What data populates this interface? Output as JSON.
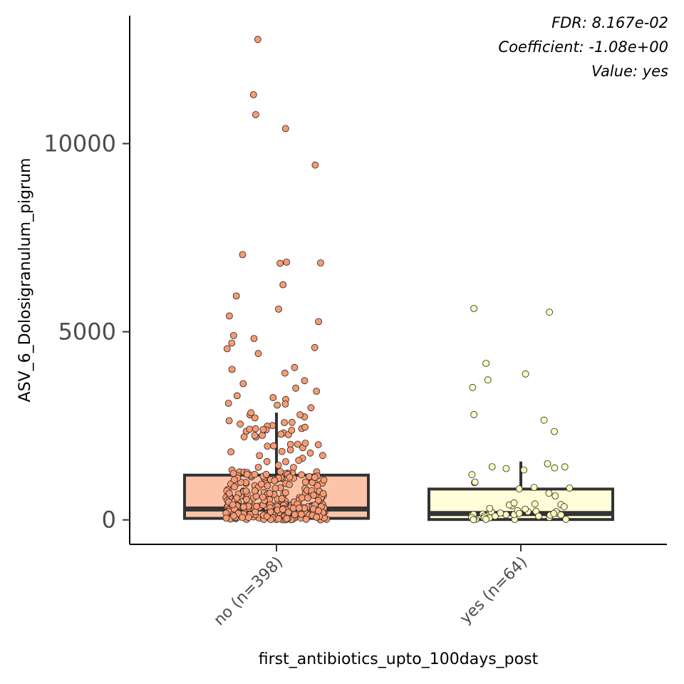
{
  "chart_data": {
    "type": "box",
    "title": "",
    "xlabel": "first_antibiotics_upto_100days_post",
    "ylabel": "ASV_6_Dolosigranulum_pigrum",
    "ylim": [
      -650,
      13400
    ],
    "yticks": [
      0,
      5000,
      10000
    ],
    "ytick_labels": [
      "0",
      "5000",
      "10000"
    ],
    "grid": false,
    "legend": "none",
    "annotations": [
      "FDR: 8.167e-02",
      "Coefficient: -1.08e+00",
      "Value: yes"
    ],
    "categories": [
      "no (n=398)",
      "yes (n=64)"
    ],
    "boxes": [
      {
        "name": "no (n=398)",
        "fill": "#fcc5aa",
        "point_fill": "#f99a73",
        "q1": 40,
        "median": 290,
        "q3": 1190,
        "whisker_low": 0,
        "whisker_high": 2850,
        "n_points": 398,
        "outliers": [
          12770,
          11300,
          10770,
          10400,
          9430,
          7050,
          6850,
          6830,
          6820,
          6250,
          5950,
          5600,
          5420,
          5270,
          4900,
          4820,
          4700,
          4580,
          4550,
          4420,
          4050,
          4000,
          3900,
          3700,
          3620,
          3500,
          3420,
          3300,
          3250,
          3200,
          3100,
          3080,
          3050,
          2980
        ]
      },
      {
        "name": "yes (n=64)",
        "fill": "#fefed9",
        "point_fill": "#fdfdc0",
        "q1": 10,
        "median": 170,
        "q3": 820,
        "whisker_low": 0,
        "whisker_high": 1550,
        "n_points": 64,
        "outliers": [
          5620,
          5520,
          4160,
          3880,
          3720,
          3520,
          2800,
          2650,
          2350
        ]
      }
    ]
  }
}
